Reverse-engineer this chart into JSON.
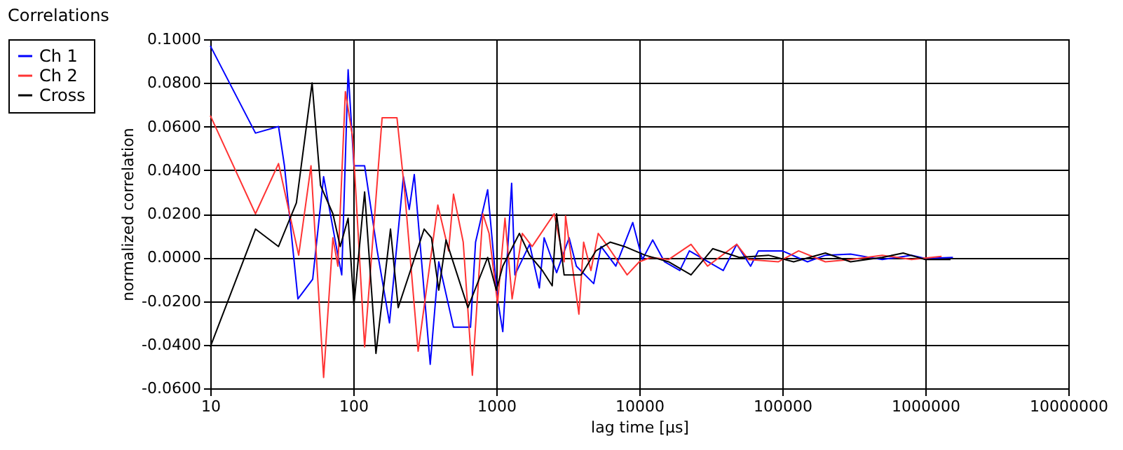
{
  "chart_data": {
    "type": "line",
    "title": "Correlations",
    "xlabel": "lag time [µs]",
    "ylabel": "normalized correlation",
    "log": "x",
    "grid": true,
    "legend": "top left",
    "line_style": "solid",
    "marker": "none",
    "xlim": [
      10,
      10000000
    ],
    "xticks": [
      10,
      100,
      1000,
      10000,
      100000,
      1000000,
      10000000
    ],
    "ylim": [
      -0.06,
      0.1
    ],
    "yticks": [
      {
        "value": -0.06,
        "label": "-0.0600"
      },
      {
        "value": -0.04,
        "label": "-0.0400"
      },
      {
        "value": -0.02,
        "label": "-0.0200"
      },
      {
        "value": 0,
        "label": "0.0000"
      },
      {
        "value": 0.02,
        "label": "0.0200"
      },
      {
        "value": 0.04,
        "label": "0.0400"
      },
      {
        "value": 0.06,
        "label": "0.0600"
      },
      {
        "value": 0.08,
        "label": "0.0800"
      },
      {
        "value": 0.1,
        "label": "0.1000"
      }
    ],
    "series": [
      {
        "name": "Ch 1",
        "color": "#0000ff",
        "x": [
          10,
          20.7,
          30,
          33,
          41,
          52,
          62,
          78,
          83,
          92,
          101,
          120,
          147,
          179,
          224,
          246,
          267,
          345,
          396,
          502,
          660,
          716,
          870,
          1020,
          1110,
          1280,
          1350,
          1710,
          2000,
          2160,
          2640,
          3230,
          3630,
          4800,
          5400,
          6850,
          9000,
          10500,
          12400,
          15000,
          19200,
          22400,
          38600,
          48000,
          60000,
          68000,
          100000,
          150000,
          200000,
          300000,
          500000,
          800000,
          1000000,
          1560000
        ],
        "values": [
          0.097,
          0.057,
          0.06,
          0.042,
          -0.019,
          -0.01,
          0.037,
          0.001,
          -0.008,
          0.086,
          0.042,
          0.042,
          0.003,
          -0.03,
          0.037,
          0.022,
          0.038,
          -0.049,
          -0.002,
          -0.032,
          -0.032,
          0.007,
          0.031,
          -0.019,
          -0.034,
          0.034,
          -0.008,
          0.006,
          -0.014,
          0.009,
          -0.007,
          0.009,
          -0.004,
          -0.012,
          0.005,
          -0.004,
          0.016,
          -0.001,
          0.008,
          -0.002,
          -0.006,
          0.003,
          -0.006,
          0.006,
          -0.004,
          0.003,
          0.003,
          -0.002,
          0.001,
          0.0015,
          -0.001,
          0.001,
          -0.0005,
          0
        ]
      },
      {
        "name": "Ch 2",
        "color": "#ff3333",
        "x": [
          10,
          20.7,
          30,
          41.5,
          50.6,
          62,
          72,
          78,
          88,
          99,
          120,
          159,
          202,
          228,
          284,
          390,
          464,
          502,
          587,
          680,
          805,
          890,
          1020,
          1150,
          1290,
          1520,
          1780,
          2540,
          2980,
          3050,
          3780,
          4080,
          4590,
          5160,
          6030,
          8220,
          10000,
          12000,
          16000,
          23000,
          30000,
          48000,
          58000,
          94000,
          130000,
          200000,
          300000,
          500000,
          800000,
          1300000
        ],
        "values": [
          0.065,
          0.02,
          0.043,
          0.001,
          0.042,
          -0.055,
          0.009,
          -0.004,
          0.076,
          0.055,
          -0.041,
          0.064,
          0.064,
          0.031,
          -0.043,
          0.024,
          0.003,
          0.029,
          0.007,
          -0.054,
          0.02,
          0.011,
          -0.021,
          0.018,
          -0.019,
          0.011,
          0.005,
          0.02,
          -0.002,
          0.019,
          -0.026,
          0.007,
          -0.006,
          0.011,
          0.005,
          -0.008,
          -0.002,
          0.0,
          -0.001,
          0.006,
          -0.004,
          0.006,
          -0.001,
          -0.002,
          0.003,
          -0.002,
          -0.001,
          0.001,
          -0.001,
          0.0005
        ]
      },
      {
        "name": "Cross",
        "color": "#000000",
        "x": [
          10,
          20.7,
          30,
          40,
          51.5,
          59,
          72,
          81,
          92,
          101,
          120,
          144,
          182,
          206,
          313,
          352,
          396,
          445,
          633,
          870,
          1000,
          1110,
          1450,
          1710,
          2100,
          2460,
          2640,
          2980,
          3920,
          4970,
          6270,
          7880,
          11000,
          16000,
          23000,
          32600,
          50000,
          80000,
          120000,
          200000,
          300000,
          500000,
          700000,
          1000000,
          1500000
        ],
        "values": [
          -0.041,
          0.013,
          0.005,
          0.025,
          0.08,
          0.033,
          0.02,
          0.005,
          0.018,
          -0.022,
          0.03,
          -0.044,
          0.013,
          -0.023,
          0.013,
          0.009,
          -0.015,
          0.008,
          -0.023,
          0.0,
          -0.015,
          -0.004,
          0.011,
          0.001,
          -0.006,
          -0.013,
          0.02,
          -0.008,
          -0.008,
          0.003,
          0.007,
          0.005,
          0.001,
          -0.002,
          -0.008,
          0.004,
          0.0,
          0.001,
          -0.002,
          0.002,
          -0.002,
          0.0,
          0.002,
          -0.001,
          -0.001
        ]
      }
    ]
  }
}
